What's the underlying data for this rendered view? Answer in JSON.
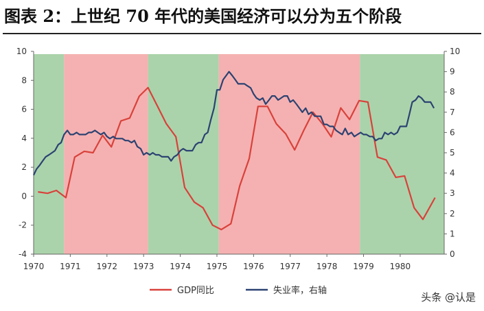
{
  "figure_title": "图表 2：上世纪 70 年代的美国经济可以分为五个阶段",
  "watermark": "头条 @认是",
  "chart_data": {
    "type": "line",
    "title": "",
    "xlabel": "",
    "ylabel": "",
    "xlim": [
      1970,
      1981.2
    ],
    "ylim_left": [
      -4,
      10
    ],
    "ylim_right": [
      0,
      10
    ],
    "x_ticks": [
      1970,
      1971,
      1972,
      1973,
      1974,
      1975,
      1976,
      1977,
      1978,
      1979,
      1980
    ],
    "y_ticks_left": [
      -4,
      -2,
      0,
      2,
      4,
      6,
      8,
      10
    ],
    "y_ticks_right": [
      0,
      1,
      2,
      3,
      4,
      5,
      6,
      7,
      8,
      9,
      10
    ],
    "grid": false,
    "legend_position": "bottom-center",
    "phases": [
      {
        "start": 1970,
        "end": 1970.83,
        "color": "#9ccb9c"
      },
      {
        "start": 1970.83,
        "end": 1973.12,
        "color": "#f3a3a3"
      },
      {
        "start": 1973.12,
        "end": 1975.05,
        "color": "#9ccb9c"
      },
      {
        "start": 1975.05,
        "end": 1978.9,
        "color": "#f3a3a3"
      },
      {
        "start": 1978.9,
        "end": 1981.2,
        "color": "#9ccb9c"
      }
    ],
    "series": [
      {
        "name": "GDP同比",
        "axis": "left",
        "color": "#d9413b",
        "points": [
          [
            1970.12,
            0.3
          ],
          [
            1970.38,
            0.2
          ],
          [
            1970.62,
            0.4
          ],
          [
            1970.88,
            -0.1
          ],
          [
            1971.12,
            2.7
          ],
          [
            1971.38,
            3.1
          ],
          [
            1971.62,
            3.0
          ],
          [
            1971.88,
            4.2
          ],
          [
            1972.12,
            3.4
          ],
          [
            1972.38,
            5.2
          ],
          [
            1972.62,
            5.4
          ],
          [
            1972.88,
            6.9
          ],
          [
            1973.12,
            7.5
          ],
          [
            1973.38,
            6.2
          ],
          [
            1973.62,
            5.0
          ],
          [
            1973.88,
            4.1
          ],
          [
            1974.12,
            0.6
          ],
          [
            1974.38,
            -0.4
          ],
          [
            1974.62,
            -0.8
          ],
          [
            1974.88,
            -2.0
          ],
          [
            1975.12,
            -2.3
          ],
          [
            1975.38,
            -1.9
          ],
          [
            1975.62,
            0.7
          ],
          [
            1975.88,
            2.6
          ],
          [
            1976.12,
            6.2
          ],
          [
            1976.38,
            6.2
          ],
          [
            1976.62,
            5.0
          ],
          [
            1976.88,
            4.3
          ],
          [
            1977.12,
            3.2
          ],
          [
            1977.38,
            4.6
          ],
          [
            1977.62,
            5.8
          ],
          [
            1977.88,
            5.0
          ],
          [
            1978.12,
            4.1
          ],
          [
            1978.38,
            6.1
          ],
          [
            1978.62,
            5.3
          ],
          [
            1978.88,
            6.6
          ],
          [
            1979.12,
            6.5
          ],
          [
            1979.38,
            2.7
          ],
          [
            1979.62,
            2.5
          ],
          [
            1979.88,
            1.3
          ],
          [
            1980.12,
            1.4
          ],
          [
            1980.38,
            -0.8
          ],
          [
            1980.62,
            -1.6
          ],
          [
            1980.95,
            -0.1
          ]
        ]
      },
      {
        "name": "失业率，右轴",
        "axis": "right",
        "color": "#2b4272",
        "points": [
          [
            1970.0,
            3.9
          ],
          [
            1970.08,
            4.2
          ],
          [
            1970.17,
            4.4
          ],
          [
            1970.25,
            4.6
          ],
          [
            1970.33,
            4.8
          ],
          [
            1970.42,
            4.9
          ],
          [
            1970.5,
            5.0
          ],
          [
            1970.58,
            5.1
          ],
          [
            1970.67,
            5.4
          ],
          [
            1970.75,
            5.5
          ],
          [
            1970.83,
            5.9
          ],
          [
            1970.92,
            6.1
          ],
          [
            1971.0,
            5.9
          ],
          [
            1971.08,
            5.9
          ],
          [
            1971.17,
            6.0
          ],
          [
            1971.25,
            5.9
          ],
          [
            1971.33,
            5.9
          ],
          [
            1971.42,
            5.9
          ],
          [
            1971.5,
            6.0
          ],
          [
            1971.58,
            6.0
          ],
          [
            1971.67,
            6.1
          ],
          [
            1971.75,
            6.0
          ],
          [
            1971.83,
            5.9
          ],
          [
            1971.92,
            6.0
          ],
          [
            1972.0,
            5.8
          ],
          [
            1972.08,
            5.7
          ],
          [
            1972.17,
            5.8
          ],
          [
            1972.25,
            5.7
          ],
          [
            1972.33,
            5.7
          ],
          [
            1972.42,
            5.7
          ],
          [
            1972.5,
            5.6
          ],
          [
            1972.58,
            5.6
          ],
          [
            1972.67,
            5.5
          ],
          [
            1972.75,
            5.6
          ],
          [
            1972.83,
            5.3
          ],
          [
            1972.92,
            5.2
          ],
          [
            1973.0,
            4.9
          ],
          [
            1973.08,
            5.0
          ],
          [
            1973.17,
            4.9
          ],
          [
            1973.25,
            5.0
          ],
          [
            1973.33,
            4.9
          ],
          [
            1973.42,
            4.9
          ],
          [
            1973.5,
            4.8
          ],
          [
            1973.58,
            4.8
          ],
          [
            1973.67,
            4.8
          ],
          [
            1973.75,
            4.6
          ],
          [
            1973.83,
            4.8
          ],
          [
            1973.92,
            4.9
          ],
          [
            1974.0,
            5.1
          ],
          [
            1974.08,
            5.2
          ],
          [
            1974.17,
            5.1
          ],
          [
            1974.25,
            5.1
          ],
          [
            1974.33,
            5.1
          ],
          [
            1974.42,
            5.4
          ],
          [
            1974.5,
            5.5
          ],
          [
            1974.58,
            5.5
          ],
          [
            1974.67,
            5.9
          ],
          [
            1974.75,
            6.0
          ],
          [
            1974.83,
            6.6
          ],
          [
            1974.92,
            7.2
          ],
          [
            1975.0,
            8.1
          ],
          [
            1975.08,
            8.1
          ],
          [
            1975.17,
            8.6
          ],
          [
            1975.25,
            8.8
          ],
          [
            1975.33,
            9.0
          ],
          [
            1975.42,
            8.8
          ],
          [
            1975.5,
            8.6
          ],
          [
            1975.58,
            8.4
          ],
          [
            1975.67,
            8.4
          ],
          [
            1975.75,
            8.4
          ],
          [
            1975.83,
            8.3
          ],
          [
            1975.92,
            8.2
          ],
          [
            1976.0,
            7.9
          ],
          [
            1976.08,
            7.7
          ],
          [
            1976.17,
            7.6
          ],
          [
            1976.25,
            7.7
          ],
          [
            1976.33,
            7.4
          ],
          [
            1976.42,
            7.6
          ],
          [
            1976.5,
            7.8
          ],
          [
            1976.58,
            7.8
          ],
          [
            1976.67,
            7.6
          ],
          [
            1976.75,
            7.7
          ],
          [
            1976.83,
            7.8
          ],
          [
            1976.92,
            7.8
          ],
          [
            1977.0,
            7.5
          ],
          [
            1977.08,
            7.6
          ],
          [
            1977.17,
            7.4
          ],
          [
            1977.25,
            7.2
          ],
          [
            1977.33,
            7.0
          ],
          [
            1977.42,
            7.2
          ],
          [
            1977.5,
            6.9
          ],
          [
            1977.58,
            7.0
          ],
          [
            1977.67,
            6.8
          ],
          [
            1977.75,
            6.8
          ],
          [
            1977.83,
            6.8
          ],
          [
            1977.92,
            6.4
          ],
          [
            1978.0,
            6.4
          ],
          [
            1978.08,
            6.3
          ],
          [
            1978.17,
            6.3
          ],
          [
            1978.25,
            6.1
          ],
          [
            1978.33,
            6.0
          ],
          [
            1978.42,
            5.9
          ],
          [
            1978.5,
            6.2
          ],
          [
            1978.58,
            5.9
          ],
          [
            1978.67,
            6.0
          ],
          [
            1978.75,
            5.8
          ],
          [
            1978.83,
            5.9
          ],
          [
            1978.92,
            6.0
          ],
          [
            1979.0,
            5.9
          ],
          [
            1979.08,
            5.9
          ],
          [
            1979.17,
            5.8
          ],
          [
            1979.25,
            5.8
          ],
          [
            1979.33,
            5.6
          ],
          [
            1979.42,
            5.7
          ],
          [
            1979.5,
            5.7
          ],
          [
            1979.58,
            6.0
          ],
          [
            1979.67,
            5.9
          ],
          [
            1979.75,
            6.0
          ],
          [
            1979.83,
            5.9
          ],
          [
            1979.92,
            6.0
          ],
          [
            1980.0,
            6.3
          ],
          [
            1980.08,
            6.3
          ],
          [
            1980.17,
            6.3
          ],
          [
            1980.25,
            6.9
          ],
          [
            1980.33,
            7.5
          ],
          [
            1980.42,
            7.6
          ],
          [
            1980.5,
            7.8
          ],
          [
            1980.58,
            7.7
          ],
          [
            1980.67,
            7.5
          ],
          [
            1980.75,
            7.5
          ],
          [
            1980.83,
            7.5
          ],
          [
            1980.92,
            7.2
          ]
        ]
      }
    ]
  }
}
